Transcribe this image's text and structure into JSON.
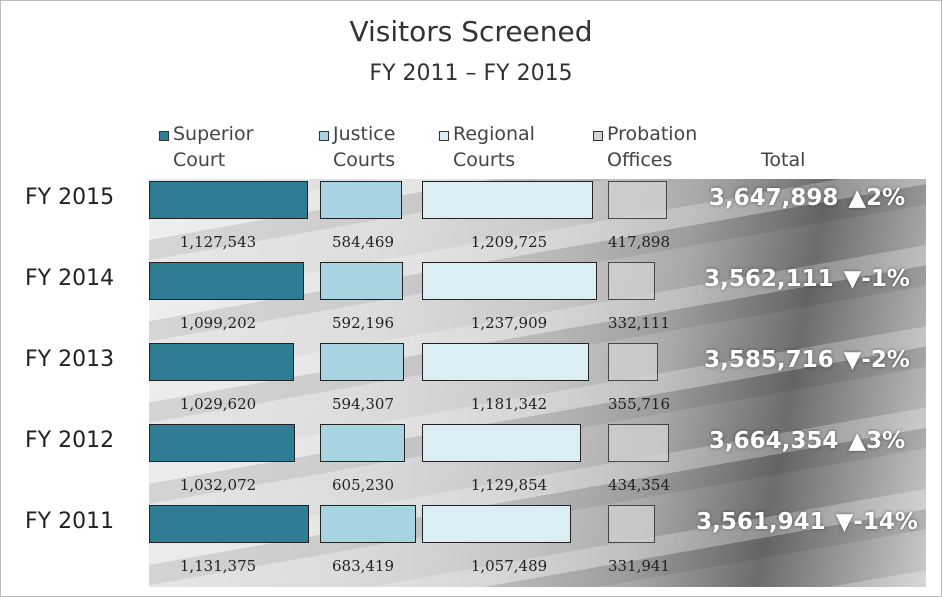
{
  "chart_data": {
    "type": "bar",
    "title": "Visitors Screened",
    "subtitle": "FY 2011 – FY 2015",
    "categories": [
      "FY 2015",
      "FY 2014",
      "FY 2013",
      "FY 2012",
      "FY 2011"
    ],
    "series": [
      {
        "name": "Superior Court",
        "color": "#2e7d95",
        "values": [
          1127543,
          1099202,
          1029620,
          1032072,
          1131375
        ],
        "value_labels": [
          "1,127,543",
          "1,099,202",
          "1,029,620",
          "1,032,072",
          "1,131,375"
        ]
      },
      {
        "name": "Justice Courts",
        "color": "#a8d4e1",
        "values": [
          584469,
          592196,
          594307,
          605230,
          683419
        ],
        "value_labels": [
          "584,469",
          "592,196",
          "594,307",
          "605,230",
          "683,419"
        ]
      },
      {
        "name": "Regional Courts",
        "color": "#daeef4",
        "values": [
          1209725,
          1237909,
          1181342,
          1129854,
          1057489
        ],
        "value_labels": [
          "1,209,725",
          "1,237,909",
          "1,181,342",
          "1,129,854",
          "1,057,489"
        ]
      },
      {
        "name": "Probation Offices",
        "color": "#d2d2d2",
        "values": [
          417898,
          332111,
          355716,
          434354,
          331941
        ],
        "value_labels": [
          "417,898",
          "332,111",
          "355,716",
          "434,354",
          "331,941"
        ]
      }
    ],
    "total": {
      "name": "Total",
      "values": [
        3647898,
        3562111,
        3585716,
        3664354,
        3561941
      ],
      "value_labels": [
        "3,647,898",
        "3,562,111",
        "3,585,716",
        "3,664,354",
        "3,561,941"
      ],
      "change_values": [
        2,
        -1,
        -2,
        3,
        -14
      ],
      "change_labels": [
        "▲2%",
        "▼-1%",
        "▼-2%",
        "▲3%",
        "▼-14%"
      ]
    }
  }
}
